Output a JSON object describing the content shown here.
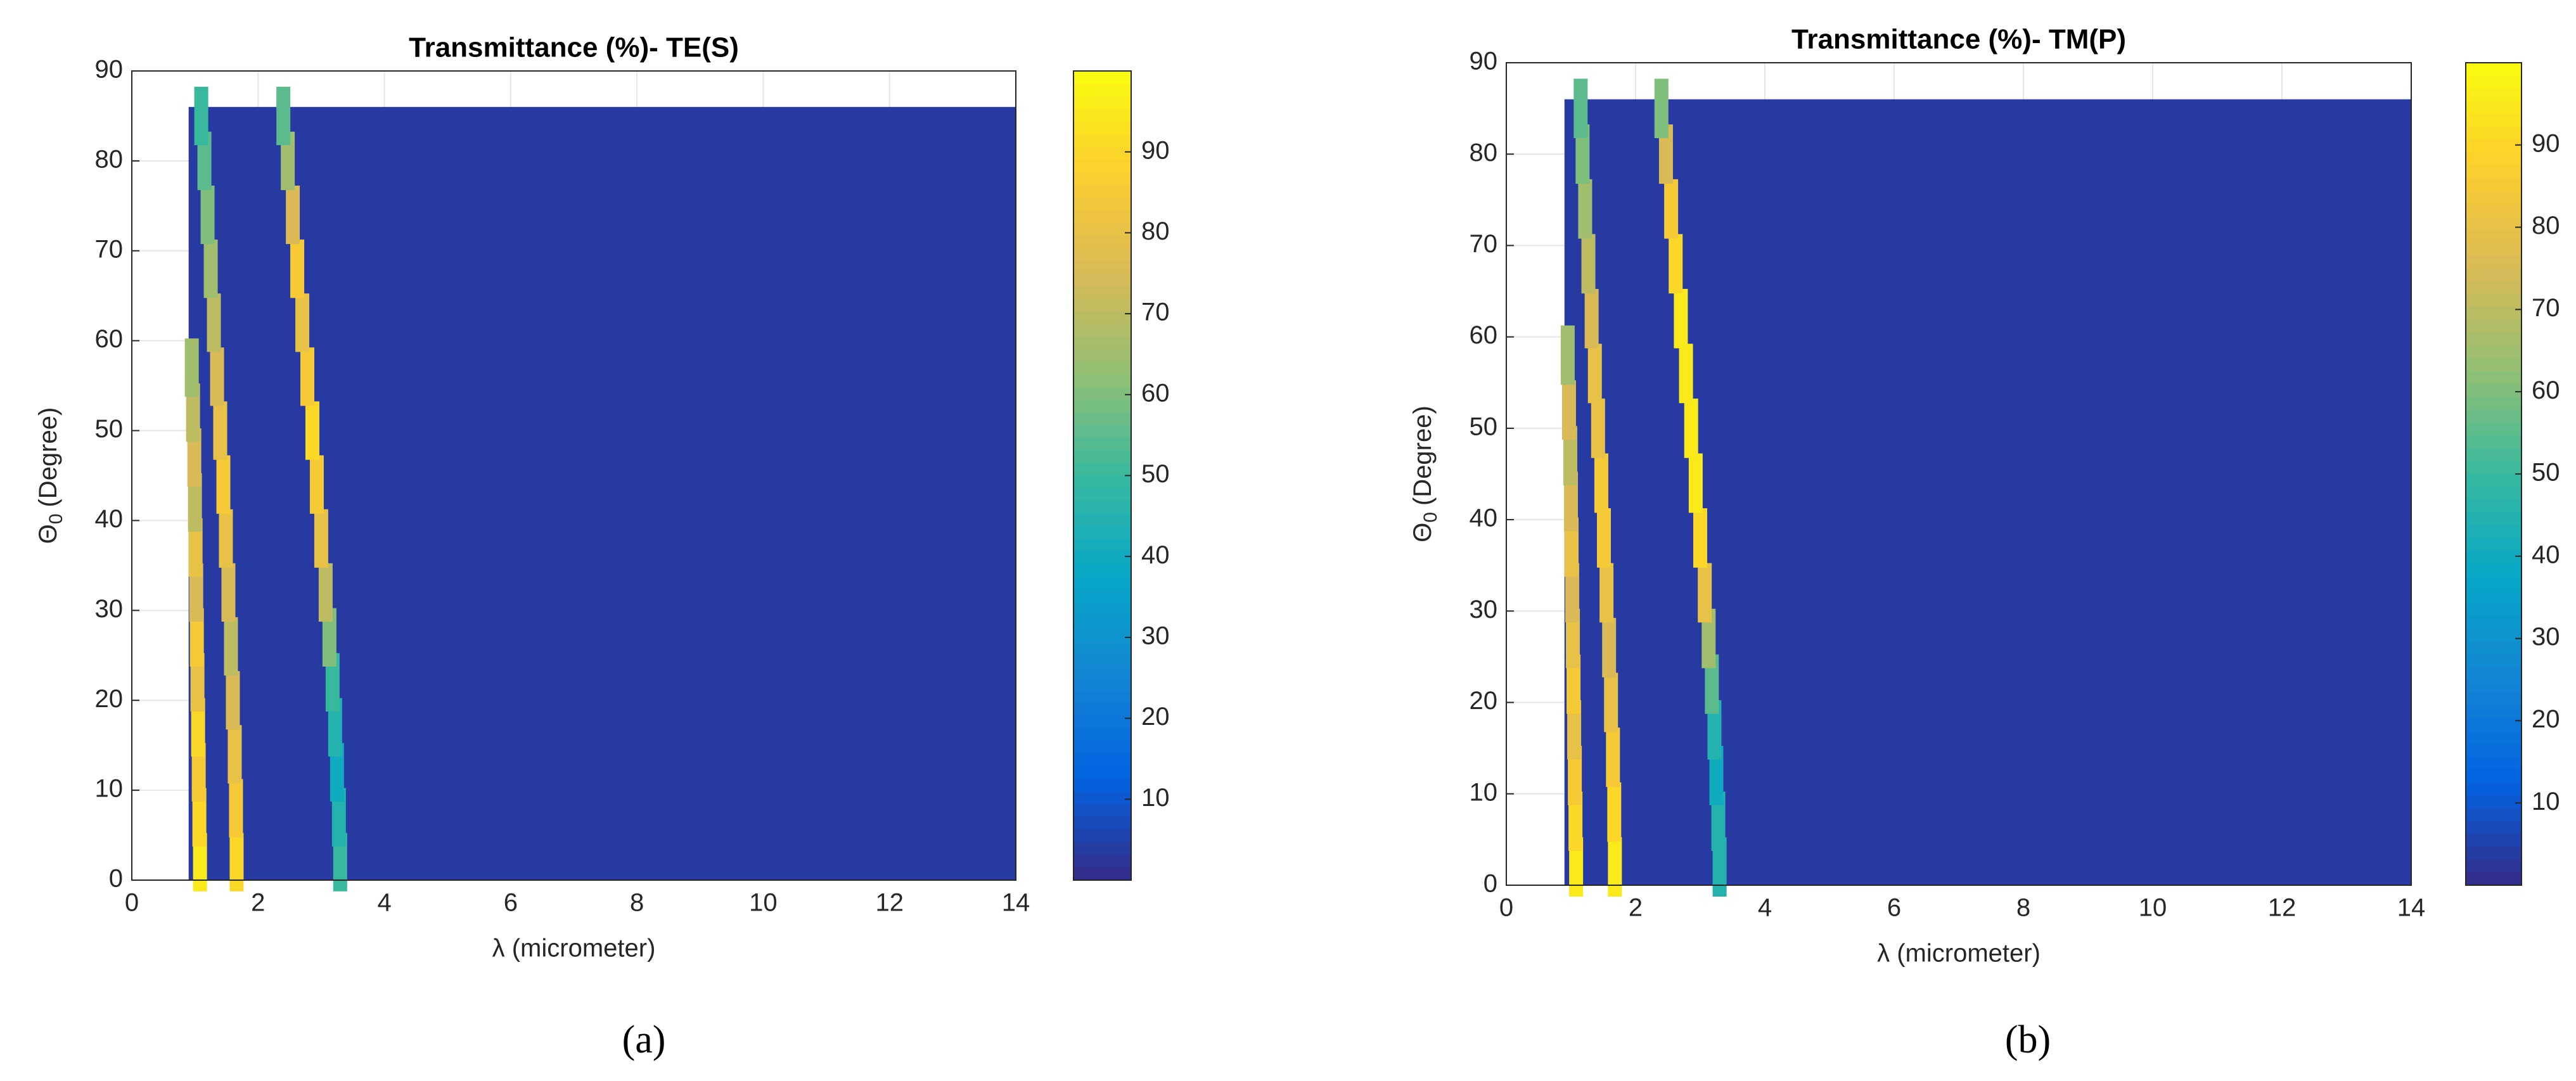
{
  "chart_data": [
    {
      "type": "heatmap",
      "title": "Transmittance (%)- TE(S)",
      "x_label": "λ (micrometer)",
      "y_label_symbol": "Θ",
      "y_label_sub": "0",
      "y_label_rest": "(Degree)",
      "panel_label": "(a)",
      "xlim": [
        0,
        14
      ],
      "ylim": [
        0,
        90
      ],
      "xticks": [
        0,
        2,
        4,
        6,
        8,
        10,
        12,
        14
      ],
      "yticks": [
        0,
        10,
        20,
        30,
        40,
        50,
        60,
        70,
        80,
        90
      ],
      "grid": true,
      "colormap": "parula",
      "clim": [
        0,
        100
      ],
      "cticks": [
        10,
        20,
        30,
        40,
        50,
        60,
        70,
        80,
        90
      ],
      "x_extent": [
        0.9,
        14
      ],
      "y_extent": [
        0,
        86
      ],
      "background_value": 1,
      "bands": [
        {
          "x": [
            1.08,
            1.07,
            1.06,
            1.05,
            1.04,
            1.03,
            1.02,
            1.01,
            1.0,
            0.99,
            0.97,
            0.95
          ],
          "y": [
            2,
            7,
            12,
            17,
            22,
            27,
            32,
            37,
            42,
            47,
            52,
            57
          ],
          "values": [
            95,
            90,
            85,
            90,
            80,
            85,
            75,
            80,
            70,
            75,
            70,
            65
          ]
        },
        {
          "x": [
            1.66,
            1.65,
            1.63,
            1.6,
            1.57,
            1.53,
            1.49,
            1.45,
            1.4,
            1.35,
            1.3,
            1.25,
            1.2,
            1.15,
            1.1
          ],
          "y": [
            2,
            8,
            14,
            20,
            26,
            32,
            38,
            44,
            50,
            56,
            62,
            68,
            74,
            80,
            85
          ],
          "values": [
            90,
            85,
            80,
            75,
            70,
            75,
            80,
            85,
            80,
            75,
            70,
            65,
            60,
            55,
            50
          ]
        },
        {
          "x": [
            3.3,
            3.28,
            3.25,
            3.22,
            3.18,
            3.13,
            3.07,
            3.0,
            2.93,
            2.86,
            2.78,
            2.7,
            2.62,
            2.55,
            2.47,
            2.4
          ],
          "y": [
            2,
            7,
            12,
            17,
            22,
            27,
            32,
            38,
            44,
            50,
            56,
            62,
            68,
            74,
            80,
            85
          ],
          "values": [
            50,
            45,
            40,
            45,
            50,
            60,
            70,
            80,
            85,
            90,
            85,
            80,
            85,
            75,
            65,
            55
          ]
        }
      ]
    },
    {
      "type": "heatmap",
      "title": "Transmittance (%)- TM(P)",
      "x_label": "λ (micrometer)",
      "y_label_symbol": "Θ",
      "y_label_sub": "0",
      "y_label_rest": "(Degree)",
      "panel_label": "(b)",
      "xlim": [
        0,
        14
      ],
      "ylim": [
        0,
        90
      ],
      "xticks": [
        0,
        2,
        4,
        6,
        8,
        10,
        12,
        14
      ],
      "yticks": [
        0,
        10,
        20,
        30,
        40,
        50,
        60,
        70,
        80,
        90
      ],
      "grid": true,
      "colormap": "parula",
      "clim": [
        0,
        100
      ],
      "cticks": [
        10,
        20,
        30,
        40,
        50,
        60,
        70,
        80,
        90
      ],
      "x_extent": [
        0.9,
        14
      ],
      "y_extent": [
        0,
        86
      ],
      "background_value": 1,
      "bands": [
        {
          "x": [
            1.08,
            1.07,
            1.06,
            1.05,
            1.04,
            1.03,
            1.02,
            1.01,
            1.0,
            0.99,
            0.97,
            0.95
          ],
          "y": [
            2,
            7,
            12,
            17,
            22,
            27,
            32,
            37,
            42,
            47,
            52,
            58
          ],
          "values": [
            95,
            90,
            85,
            80,
            85,
            80,
            75,
            80,
            75,
            70,
            75,
            65
          ]
        },
        {
          "x": [
            1.68,
            1.67,
            1.65,
            1.62,
            1.59,
            1.55,
            1.51,
            1.47,
            1.42,
            1.37,
            1.32,
            1.27,
            1.22,
            1.18,
            1.15
          ],
          "y": [
            2,
            8,
            14,
            20,
            26,
            32,
            38,
            44,
            50,
            56,
            62,
            68,
            74,
            80,
            85
          ],
          "values": [
            95,
            90,
            85,
            80,
            75,
            80,
            85,
            85,
            80,
            80,
            75,
            70,
            65,
            60,
            55
          ]
        },
        {
          "x": [
            3.3,
            3.28,
            3.25,
            3.22,
            3.18,
            3.13,
            3.07,
            3.0,
            2.93,
            2.86,
            2.78,
            2.7,
            2.62,
            2.55,
            2.47,
            2.4
          ],
          "y": [
            2,
            7,
            12,
            17,
            22,
            27,
            32,
            38,
            44,
            50,
            56,
            62,
            68,
            74,
            80,
            85
          ],
          "values": [
            45,
            45,
            40,
            45,
            55,
            65,
            80,
            90,
            95,
            95,
            95,
            95,
            90,
            85,
            75,
            60
          ]
        }
      ]
    }
  ]
}
